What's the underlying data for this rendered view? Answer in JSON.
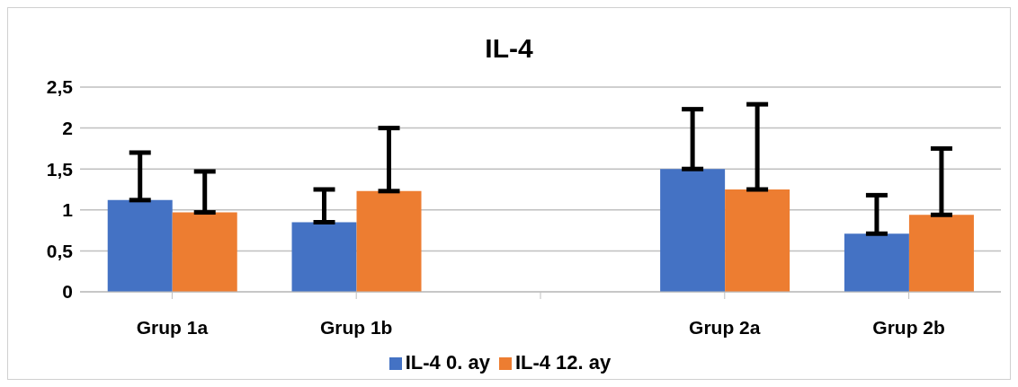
{
  "chart_data": {
    "type": "bar",
    "title": "IL-4",
    "categories": [
      "Grup 1a",
      "Grup 1b",
      null,
      "Grup 2a",
      "Grup 2b"
    ],
    "series": [
      {
        "name": "IL-4 0. ay",
        "color": "#4472c4",
        "values": [
          1.12,
          0.85,
          null,
          1.5,
          0.71
        ],
        "errors": [
          [
            1.12,
            1.7
          ],
          [
            0.85,
            1.25
          ],
          null,
          [
            1.5,
            2.23
          ],
          [
            0.71,
            1.18
          ]
        ]
      },
      {
        "name": "IL-4 12. ay",
        "color": "#ed7d31",
        "values": [
          0.97,
          1.23,
          null,
          1.25,
          0.94
        ],
        "errors": [
          [
            0.97,
            1.47
          ],
          [
            1.23,
            2.0
          ],
          null,
          [
            1.25,
            2.29
          ],
          [
            0.94,
            1.75
          ]
        ]
      }
    ],
    "ylim": [
      0,
      2.5
    ],
    "yticks": [
      0,
      {
        "value": 0.5,
        "label": "0,5"
      },
      1,
      {
        "value": 1.5,
        "label": "1,5"
      },
      2,
      {
        "value": 2.5,
        "label": "2,5"
      }
    ],
    "grid": "y",
    "legend": "bottom"
  }
}
